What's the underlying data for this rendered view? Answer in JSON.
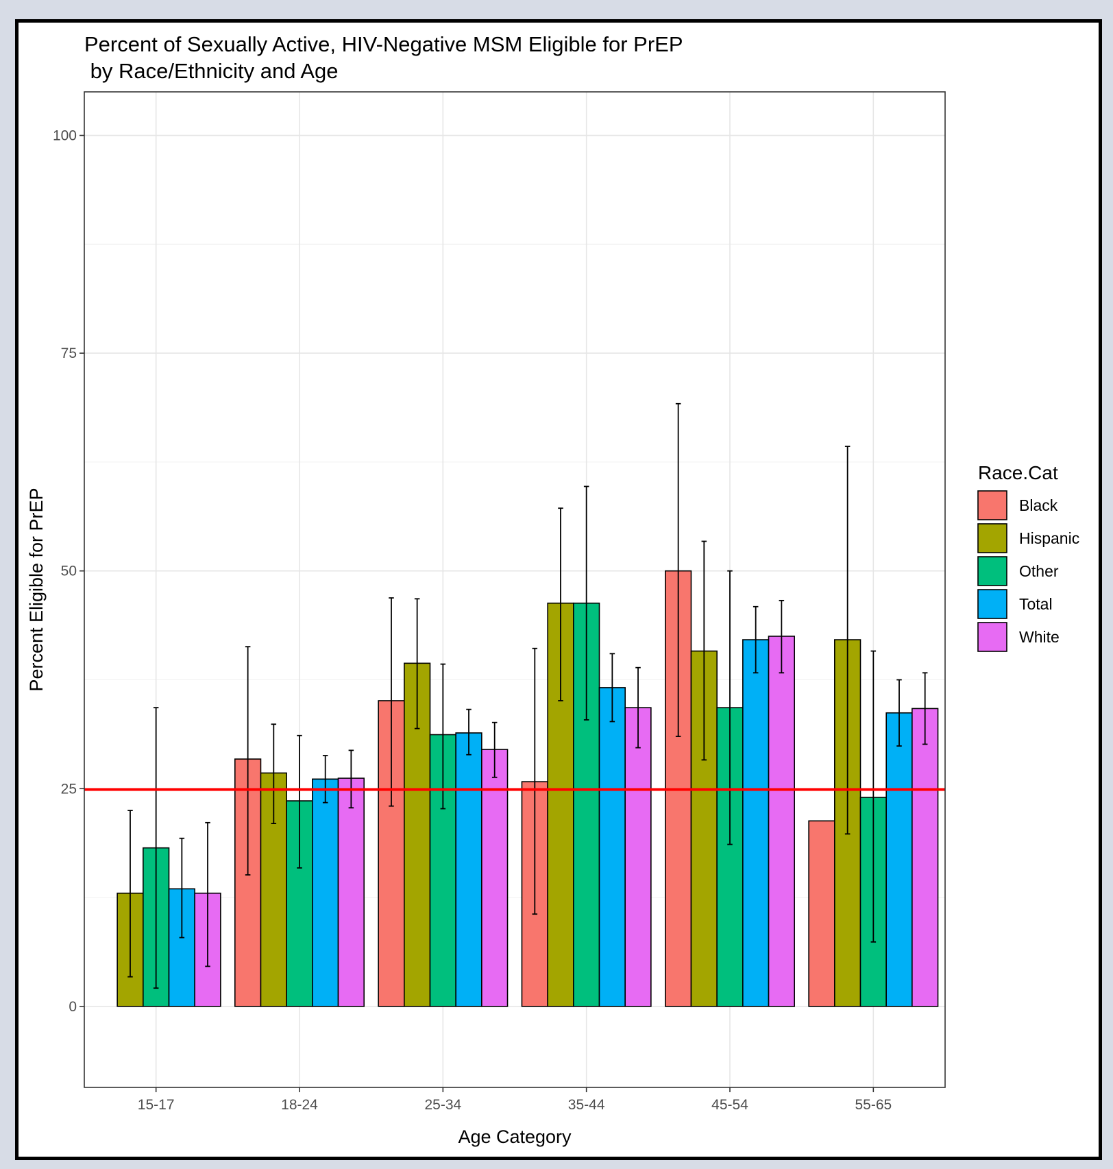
{
  "chart_data": {
    "type": "bar",
    "title_lines": [
      "Percent of Sexually Active, HIV-Negative MSM Eligible for PrEP",
      " by Race/Ethnicity and Age"
    ],
    "xlabel": "Age Category",
    "ylabel": "Percent Eligible for PrEP",
    "ylim": [
      -9.3,
      105
    ],
    "yticks": [
      0,
      25,
      50,
      75,
      100
    ],
    "grid": true,
    "legend_position": "right",
    "legend_title": "Race.Cat",
    "categories": [
      "15-17",
      "18-24",
      "25-34",
      "35-44",
      "45-54",
      "55-65"
    ],
    "reference_line": {
      "y": 24.9,
      "color": "#ff0000"
    },
    "series": [
      {
        "name": "Black",
        "color": "#F8766D",
        "values": [
          0,
          28.4,
          35.1,
          25.8,
          50.0,
          21.3
        ],
        "error_low": [
          null,
          15.1,
          23.0,
          10.6,
          31.0,
          null
        ],
        "error_high": [
          null,
          41.3,
          46.9,
          41.1,
          69.2,
          null
        ]
      },
      {
        "name": "Hispanic",
        "color": "#A3A500",
        "values": [
          13.0,
          26.8,
          39.4,
          46.3,
          40.8,
          42.1
        ],
        "error_low": [
          3.4,
          21.0,
          31.9,
          35.1,
          28.3,
          19.8
        ],
        "error_high": [
          22.5,
          32.4,
          46.8,
          57.2,
          53.4,
          64.3
        ]
      },
      {
        "name": "Other",
        "color": "#00BF7D",
        "values": [
          18.2,
          23.6,
          31.2,
          46.3,
          34.3,
          24.0
        ],
        "error_low": [
          2.1,
          15.9,
          22.7,
          32.9,
          18.6,
          7.4
        ],
        "error_high": [
          34.3,
          31.1,
          39.3,
          59.7,
          50.0,
          40.8
        ]
      },
      {
        "name": "Total",
        "color": "#00B0F6",
        "values": [
          13.5,
          26.1,
          31.4,
          36.6,
          42.1,
          33.7
        ],
        "error_low": [
          7.9,
          23.4,
          28.9,
          32.7,
          38.3,
          29.9
        ],
        "error_high": [
          19.3,
          28.8,
          34.1,
          40.5,
          45.9,
          37.5
        ]
      },
      {
        "name": "White",
        "color": "#E76BF3",
        "values": [
          13.0,
          26.2,
          29.5,
          34.3,
          42.5,
          34.2
        ],
        "error_low": [
          4.6,
          22.8,
          26.3,
          29.7,
          38.3,
          30.1
        ],
        "error_high": [
          21.1,
          29.4,
          32.6,
          38.9,
          46.6,
          38.3
        ]
      }
    ]
  }
}
